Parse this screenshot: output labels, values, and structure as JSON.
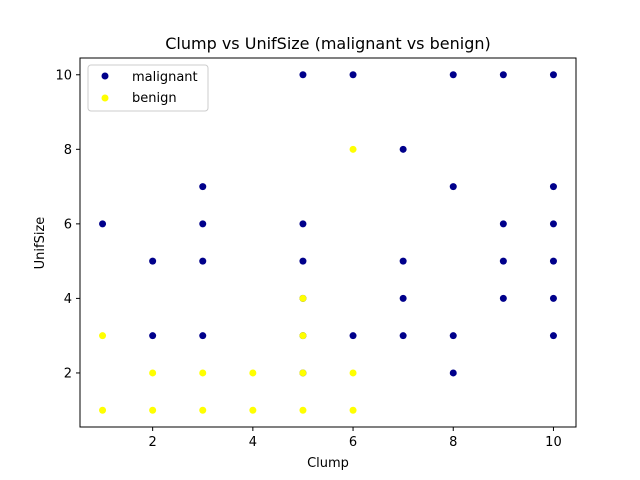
{
  "chart_data": {
    "type": "scatter",
    "title": "Clump vs UnifSize (malignant vs benign)",
    "xlabel": "Clump",
    "ylabel": "UnifSize",
    "xlim": [
      0.55,
      10.45
    ],
    "ylim": [
      0.55,
      10.45
    ],
    "xticks": [
      2,
      4,
      6,
      8,
      10
    ],
    "yticks": [
      2,
      4,
      6,
      8,
      10
    ],
    "grid": false,
    "legend_position": "top-left",
    "series": [
      {
        "name": "malignant",
        "color": "#00008b",
        "points": [
          [
            1,
            6
          ],
          [
            2,
            5
          ],
          [
            2,
            3
          ],
          [
            3,
            7
          ],
          [
            3,
            6
          ],
          [
            3,
            5
          ],
          [
            3,
            3
          ],
          [
            5,
            10
          ],
          [
            5,
            6
          ],
          [
            5,
            5
          ],
          [
            5,
            4
          ],
          [
            5,
            3
          ],
          [
            5,
            2
          ],
          [
            6,
            10
          ],
          [
            6,
            3
          ],
          [
            7,
            8
          ],
          [
            7,
            5
          ],
          [
            7,
            4
          ],
          [
            7,
            3
          ],
          [
            8,
            10
          ],
          [
            8,
            7
          ],
          [
            8,
            3
          ],
          [
            8,
            2
          ],
          [
            9,
            10
          ],
          [
            9,
            6
          ],
          [
            9,
            5
          ],
          [
            9,
            4
          ],
          [
            10,
            10
          ],
          [
            10,
            7
          ],
          [
            10,
            6
          ],
          [
            10,
            5
          ],
          [
            10,
            4
          ],
          [
            10,
            3
          ]
        ]
      },
      {
        "name": "benign",
        "color": "#ffff00",
        "points": [
          [
            1,
            3
          ],
          [
            1,
            1
          ],
          [
            2,
            2
          ],
          [
            2,
            1
          ],
          [
            3,
            2
          ],
          [
            3,
            1
          ],
          [
            4,
            2
          ],
          [
            4,
            1
          ],
          [
            5,
            4
          ],
          [
            5,
            3
          ],
          [
            5,
            2
          ],
          [
            5,
            1
          ],
          [
            6,
            8
          ],
          [
            6,
            2
          ],
          [
            6,
            1
          ]
        ]
      }
    ]
  }
}
